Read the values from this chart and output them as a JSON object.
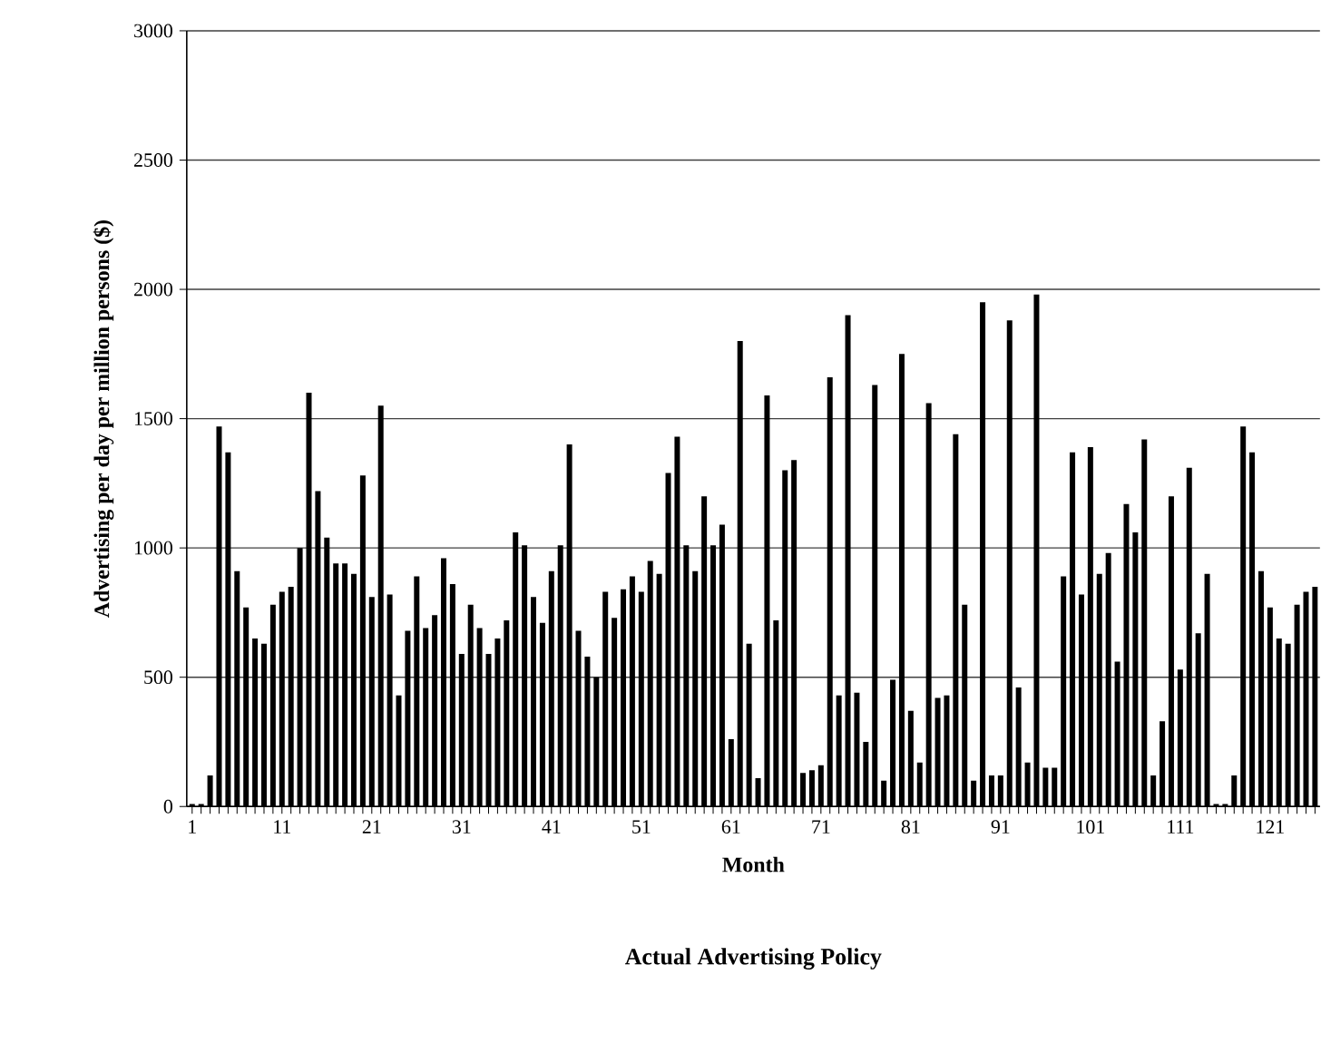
{
  "chart_data": {
    "type": "bar",
    "title": "Actual Advertising Policy",
    "xlabel": "Month",
    "ylabel": "Advertising per day per million persons ($)",
    "categories": [
      "1",
      null,
      null,
      null,
      null,
      null,
      null,
      null,
      null,
      null,
      "11",
      null,
      null,
      null,
      null,
      null,
      null,
      null,
      null,
      null,
      "21",
      null,
      null,
      null,
      null,
      null,
      null,
      null,
      null,
      null,
      "31",
      null,
      null,
      null,
      null,
      null,
      null,
      null,
      null,
      null,
      "41",
      null,
      null,
      null,
      null,
      null,
      null,
      null,
      null,
      null,
      "51",
      null,
      null,
      null,
      null,
      null,
      null,
      null,
      null,
      null,
      "61",
      null,
      null,
      null,
      null,
      null,
      null,
      null,
      null,
      null,
      "71",
      null,
      null,
      null,
      null,
      null,
      null,
      null,
      null,
      null,
      "81",
      null,
      null,
      null,
      null,
      null,
      null,
      null,
      null,
      null,
      "91",
      null,
      null,
      null,
      null,
      null,
      null,
      null,
      null,
      null,
      "101",
      null,
      null,
      null,
      null,
      null,
      null,
      null,
      null,
      null,
      "111",
      null,
      null,
      null,
      null,
      null,
      null,
      null,
      null,
      null,
      "121",
      null,
      null,
      null,
      null,
      null
    ],
    "values": [
      10,
      10,
      120,
      1470,
      1370,
      910,
      770,
      650,
      630,
      780,
      830,
      850,
      1000,
      1600,
      1220,
      1040,
      940,
      940,
      900,
      1280,
      810,
      1550,
      820,
      430,
      680,
      890,
      690,
      740,
      960,
      860,
      590,
      780,
      690,
      590,
      650,
      720,
      1060,
      1010,
      810,
      710,
      910,
      1010,
      1400,
      680,
      580,
      500,
      830,
      730,
      840,
      890,
      830,
      950,
      900,
      1290,
      1430,
      1010,
      910,
      1200,
      1010,
      1090,
      260,
      1800,
      630,
      110,
      1590,
      720,
      1300,
      1340,
      130,
      140,
      160,
      1660,
      430,
      1900,
      440,
      250,
      1630,
      100,
      490,
      1750,
      370,
      170,
      1560,
      420,
      430,
      1440,
      780,
      100,
      1950,
      120,
      120,
      1880,
      460,
      170,
      1980,
      150,
      150,
      890,
      1370,
      820,
      1390,
      900,
      980,
      560,
      1170,
      1060,
      1420,
      120,
      330,
      1200,
      530,
      1310,
      670,
      900,
      10,
      10,
      120,
      1470,
      1370,
      910,
      770,
      650,
      630,
      780,
      830,
      850
    ],
    "color": "#000000",
    "ylim": [
      0,
      3000
    ],
    "yticks": [
      0,
      500,
      1000,
      1500,
      2000,
      2500,
      3000
    ],
    "grid": "y"
  }
}
